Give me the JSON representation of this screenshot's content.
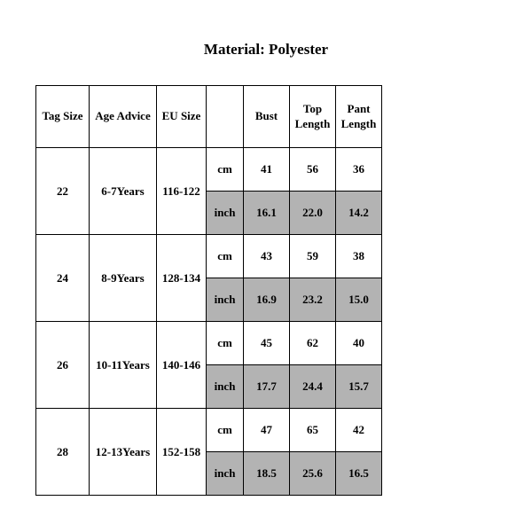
{
  "title": "Material: Polyester",
  "table": {
    "headers": {
      "tag": "Tag Size",
      "age": "Age Advice",
      "eu": "EU Size",
      "unit": "",
      "bust": "Bust",
      "top": "Top Length",
      "pant": "Pant Length"
    },
    "unit_labels": {
      "cm": "cm",
      "inch": "inch"
    },
    "rows": [
      {
        "tag": "22",
        "age": "6-7Years",
        "eu": "116-122",
        "cm": {
          "bust": "41",
          "top": "56",
          "pant": "36"
        },
        "inch": {
          "bust": "16.1",
          "top": "22.0",
          "pant": "14.2"
        }
      },
      {
        "tag": "24",
        "age": "8-9Years",
        "eu": "128-134",
        "cm": {
          "bust": "43",
          "top": "59",
          "pant": "38"
        },
        "inch": {
          "bust": "16.9",
          "top": "23.2",
          "pant": "15.0"
        }
      },
      {
        "tag": "26",
        "age": "10-11Years",
        "eu": "140-146",
        "cm": {
          "bust": "45",
          "top": "62",
          "pant": "40"
        },
        "inch": {
          "bust": "17.7",
          "top": "24.4",
          "pant": "15.7"
        }
      },
      {
        "tag": "28",
        "age": "12-13Years",
        "eu": "152-158",
        "cm": {
          "bust": "47",
          "top": "65",
          "pant": "42"
        },
        "inch": {
          "bust": "18.5",
          "top": "25.6",
          "pant": "16.5"
        }
      }
    ],
    "colors": {
      "shade_bg": "#b3b3b3",
      "border": "#000000",
      "text": "#000000",
      "page_bg": "#ffffff"
    }
  }
}
